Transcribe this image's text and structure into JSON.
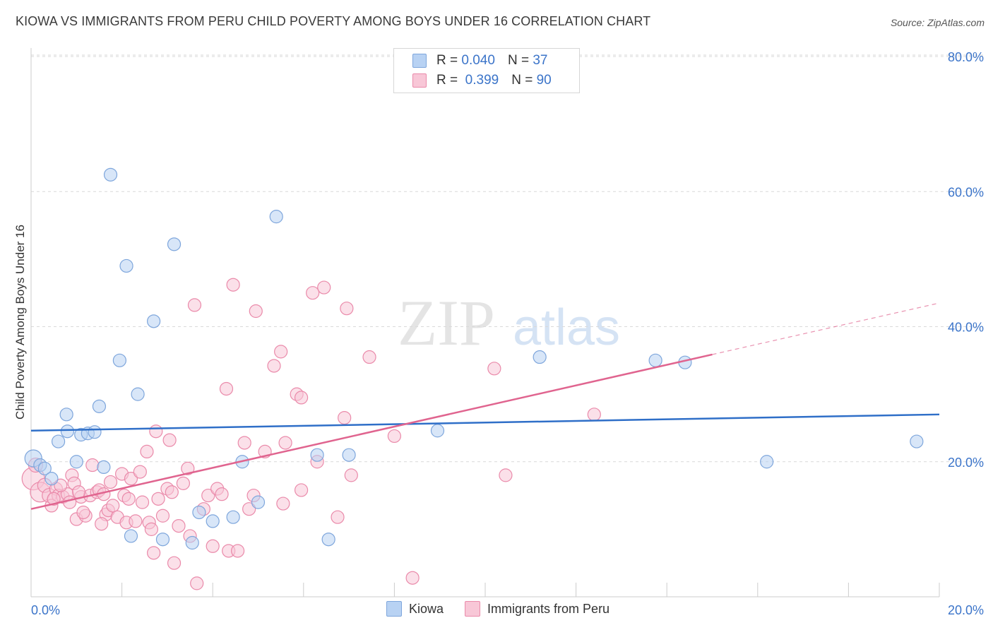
{
  "header": {
    "title": "KIOWA VS IMMIGRANTS FROM PERU CHILD POVERTY AMONG BOYS UNDER 16 CORRELATION CHART",
    "source": "Source: ZipAtlas.com"
  },
  "watermark": {
    "zip": "ZIP",
    "atlas": "atlas"
  },
  "legend": {
    "rows": [
      {
        "r_label": "R =",
        "r_value": "0.040",
        "n_label": "N =",
        "n_value": "37"
      },
      {
        "r_label": "R =",
        "r_value": "0.399",
        "n_label": "N =",
        "n_value": "90"
      }
    ]
  },
  "colors": {
    "kiowa_fill": "#b8d2f3",
    "kiowa_stroke": "#7ea6dc",
    "kiowa_line": "#2f6fc8",
    "peru_fill": "#f8c7d7",
    "peru_stroke": "#ea8aaa",
    "peru_line": "#e0648f",
    "axis_label": "#3b74c9",
    "grid": "#d9d9d9"
  },
  "chart_data": {
    "type": "scatter",
    "title": "KIOWA VS IMMIGRANTS FROM PERU CHILD POVERTY AMONG BOYS UNDER 16 CORRELATION CHART",
    "xlabel": "",
    "ylabel": "Child Poverty Among Boys Under 16",
    "xlim": [
      0,
      20
    ],
    "ylim": [
      0,
      80
    ],
    "x_tick_labels": [
      "0.0%",
      "20.0%"
    ],
    "y_ticks": [
      20,
      40,
      60,
      80
    ],
    "y_tick_labels": [
      "20.0%",
      "40.0%",
      "60.0%",
      "80.0%"
    ],
    "grid": true,
    "legend_position": "top-center",
    "series": [
      {
        "name": "Kiowa",
        "r": 0.04,
        "n": 37,
        "trend": {
          "x": [
            0,
            20
          ],
          "y": [
            24.6,
            27.0
          ],
          "dashed_from": null
        },
        "points": [
          [
            0.05,
            20.5,
            12
          ],
          [
            0.2,
            19.5,
            9
          ],
          [
            0.3,
            19.0,
            9
          ],
          [
            0.45,
            17.5,
            9
          ],
          [
            0.6,
            23.0,
            9
          ],
          [
            0.8,
            24.5,
            9
          ],
          [
            0.78,
            27.0,
            9
          ],
          [
            1.0,
            20.0,
            9
          ],
          [
            1.1,
            24.0,
            9
          ],
          [
            1.25,
            24.2,
            9
          ],
          [
            1.4,
            24.4,
            9
          ],
          [
            1.5,
            28.2,
            9
          ],
          [
            1.6,
            19.2,
            9
          ],
          [
            1.75,
            62.5,
            9
          ],
          [
            1.95,
            35.0,
            9
          ],
          [
            2.1,
            49.0,
            9
          ],
          [
            2.2,
            9.0,
            9
          ],
          [
            2.35,
            30.0,
            9
          ],
          [
            2.7,
            40.8,
            9
          ],
          [
            2.9,
            8.5,
            9
          ],
          [
            3.15,
            52.2,
            9
          ],
          [
            3.55,
            8.0,
            9
          ],
          [
            3.7,
            12.5,
            9
          ],
          [
            4.0,
            11.2,
            9
          ],
          [
            4.45,
            11.8,
            9
          ],
          [
            4.65,
            20.0,
            9
          ],
          [
            5.0,
            14.0,
            9
          ],
          [
            5.4,
            56.3,
            9
          ],
          [
            6.3,
            21.0,
            9
          ],
          [
            6.55,
            8.5,
            9
          ],
          [
            7.0,
            21.0,
            9
          ],
          [
            8.95,
            24.6,
            9
          ],
          [
            11.2,
            35.5,
            9
          ],
          [
            13.75,
            35.0,
            9
          ],
          [
            14.4,
            34.7,
            9
          ],
          [
            16.2,
            20.0,
            9
          ],
          [
            19.5,
            23.0,
            9
          ]
        ]
      },
      {
        "name": "Immigrants from Peru",
        "r": 0.399,
        "n": 90,
        "trend": {
          "x": [
            0,
            20
          ],
          "y": [
            13.0,
            43.5
          ],
          "dashed_from": 15
        },
        "points": [
          [
            0.05,
            17.5,
            16
          ],
          [
            0.1,
            19.5,
            10
          ],
          [
            0.2,
            15.5,
            14
          ],
          [
            0.3,
            16.5,
            10
          ],
          [
            0.4,
            15.0,
            10
          ],
          [
            0.45,
            13.5,
            9
          ],
          [
            0.55,
            16.0,
            9
          ],
          [
            0.6,
            15.0,
            9
          ],
          [
            0.7,
            14.8,
            9
          ],
          [
            0.8,
            15.2,
            9
          ],
          [
            0.85,
            14.0,
            9
          ],
          [
            0.9,
            18.0,
            9
          ],
          [
            0.95,
            16.8,
            9
          ],
          [
            1.0,
            11.5,
            9
          ],
          [
            1.1,
            14.8,
            9
          ],
          [
            1.2,
            12.0,
            9
          ],
          [
            1.3,
            15.0,
            9
          ],
          [
            1.35,
            19.5,
            9
          ],
          [
            1.45,
            15.5,
            9
          ],
          [
            1.5,
            15.8,
            9
          ],
          [
            1.6,
            15.2,
            9
          ],
          [
            1.65,
            12.2,
            9
          ],
          [
            1.7,
            12.8,
            9
          ],
          [
            1.75,
            17.0,
            9
          ],
          [
            1.8,
            13.5,
            9
          ],
          [
            1.9,
            11.8,
            9
          ],
          [
            2.0,
            18.2,
            9
          ],
          [
            2.05,
            15.0,
            9
          ],
          [
            2.1,
            11.0,
            9
          ],
          [
            2.15,
            14.5,
            9
          ],
          [
            2.2,
            17.5,
            9
          ],
          [
            2.3,
            11.2,
            9
          ],
          [
            2.4,
            18.5,
            9
          ],
          [
            2.45,
            14.0,
            9
          ],
          [
            2.55,
            21.5,
            9
          ],
          [
            2.6,
            11.0,
            9
          ],
          [
            2.65,
            10.0,
            9
          ],
          [
            2.7,
            6.5,
            9
          ],
          [
            2.75,
            24.5,
            9
          ],
          [
            2.8,
            14.5,
            9
          ],
          [
            2.9,
            12.0,
            9
          ],
          [
            3.0,
            16.0,
            9
          ],
          [
            3.05,
            23.2,
            9
          ],
          [
            3.1,
            15.5,
            9
          ],
          [
            3.15,
            5.0,
            9
          ],
          [
            3.25,
            10.5,
            9
          ],
          [
            3.35,
            16.8,
            9
          ],
          [
            3.45,
            19.0,
            9
          ],
          [
            3.5,
            9.0,
            9
          ],
          [
            3.6,
            43.2,
            9
          ],
          [
            3.65,
            2.0,
            9
          ],
          [
            3.8,
            13.0,
            9
          ],
          [
            3.9,
            15.0,
            9
          ],
          [
            4.0,
            7.5,
            9
          ],
          [
            4.1,
            16.0,
            9
          ],
          [
            4.2,
            15.2,
            9
          ],
          [
            4.3,
            30.8,
            9
          ],
          [
            4.35,
            6.8,
            9
          ],
          [
            4.45,
            46.2,
            9
          ],
          [
            4.55,
            6.8,
            9
          ],
          [
            4.7,
            22.8,
            9
          ],
          [
            4.8,
            13.0,
            9
          ],
          [
            4.9,
            15.0,
            9
          ],
          [
            4.95,
            42.3,
            9
          ],
          [
            5.15,
            21.5,
            9
          ],
          [
            5.35,
            34.2,
            9
          ],
          [
            5.5,
            36.3,
            9
          ],
          [
            5.55,
            13.8,
            9
          ],
          [
            5.6,
            22.8,
            9
          ],
          [
            5.85,
            30.0,
            9
          ],
          [
            5.95,
            29.5,
            9
          ],
          [
            5.95,
            15.8,
            9
          ],
          [
            6.2,
            45.0,
            9
          ],
          [
            6.3,
            20.0,
            9
          ],
          [
            6.45,
            45.8,
            9
          ],
          [
            6.75,
            11.8,
            9
          ],
          [
            6.9,
            26.5,
            9
          ],
          [
            6.95,
            42.7,
            9
          ],
          [
            7.05,
            18.0,
            9
          ],
          [
            7.45,
            35.5,
            9
          ],
          [
            8.0,
            23.8,
            9
          ],
          [
            8.4,
            2.8,
            9
          ],
          [
            10.2,
            33.8,
            9
          ],
          [
            10.45,
            18.0,
            9
          ],
          [
            12.4,
            27.0,
            9
          ],
          [
            1.05,
            15.5,
            9
          ],
          [
            1.15,
            12.5,
            9
          ],
          [
            1.55,
            10.8,
            9
          ],
          [
            0.5,
            14.5,
            9
          ],
          [
            0.65,
            16.5,
            9
          ]
        ]
      }
    ]
  },
  "bottom_legend": {
    "items": [
      "Kiowa",
      "Immigrants from Peru"
    ]
  }
}
